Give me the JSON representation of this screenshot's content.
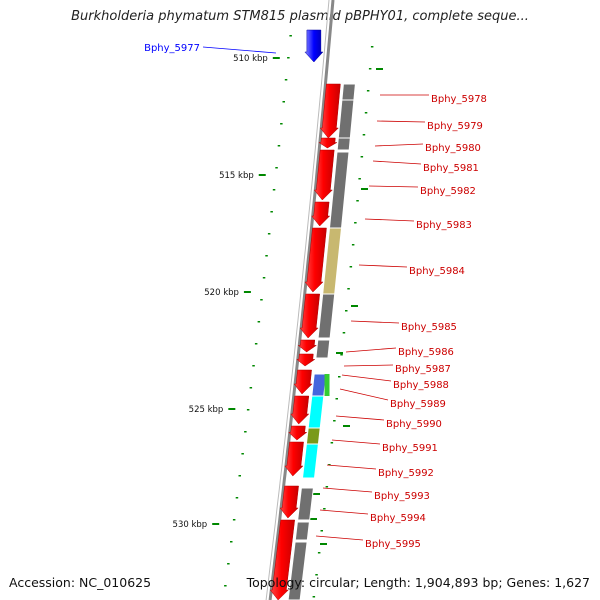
{
  "title": "Burkholderia phymatum STM815 plasmid pBPHY01, complete seque...",
  "footer": {
    "accession": "Accession: NC_010625",
    "summary": "Topology: circular; Length: 1,904,893 bp; Genes: 1,627"
  },
  "scale_ticks": [
    "510 kbp",
    "515 kbp",
    "520 kbp",
    "525 kbp",
    "530 kbp"
  ],
  "highlight_gene": "Bphy_5977",
  "gene_labels": [
    "Bphy_5978",
    "Bphy_5979",
    "Bphy_5980",
    "Bphy_5981",
    "Bphy_5982",
    "Bphy_5983",
    "Bphy_5984",
    "Bphy_5985",
    "Bphy_5986",
    "Bphy_5987",
    "Bphy_5988",
    "Bphy_5989",
    "Bphy_5990",
    "Bphy_5991",
    "Bphy_5992",
    "Bphy_5993",
    "Bphy_5994",
    "Bphy_5995"
  ],
  "colors": {
    "cds": "#ff0000",
    "highlight": "#0000ff",
    "label": "#cc0000",
    "cog_gray": "#707070",
    "cog_khaki": "#c8b870",
    "cog_cyan": "#00ffff",
    "cog_green": "#33cc33",
    "cog_olive": "#7a9a1a",
    "cog_blue": "#4466dd",
    "dots": "#008800"
  }
}
